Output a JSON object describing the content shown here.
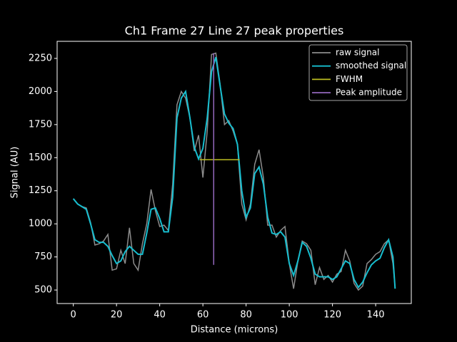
{
  "chart_data": {
    "type": "line",
    "title": "Ch1 Frame 27 Line 27 peak properties",
    "xlabel": "Distance (microns)",
    "ylabel": "Signal (AU)",
    "xlim": [
      -7.5,
      156.5
    ],
    "ylim": [
      398,
      2379
    ],
    "xticks": [
      0,
      20,
      40,
      60,
      80,
      100,
      120,
      140
    ],
    "yticks": [
      500,
      750,
      1000,
      1250,
      1500,
      1750,
      2000,
      2250
    ],
    "legend": "upper right",
    "series": [
      {
        "name": "raw signal",
        "color": "#8c8c8c",
        "x": [
          0,
          2,
          4,
          6,
          8,
          10,
          12,
          14,
          16,
          18,
          20,
          22,
          24,
          26,
          28,
          30,
          32,
          34,
          36,
          38,
          40,
          42,
          44,
          46,
          48,
          50,
          52,
          54,
          56,
          58,
          60,
          62,
          64,
          66,
          68,
          70,
          72,
          74,
          76,
          78,
          80,
          82,
          84,
          86,
          88,
          90,
          92,
          94,
          96,
          98,
          100,
          102,
          104,
          106,
          108,
          110,
          112,
          114,
          116,
          118,
          120,
          122,
          124,
          126,
          128,
          130,
          132,
          134,
          136,
          138,
          140,
          142,
          144,
          146,
          148,
          149
        ],
        "values": [
          1190,
          1150,
          1130,
          1120,
          1010,
          840,
          850,
          870,
          920,
          650,
          660,
          800,
          700,
          970,
          700,
          650,
          850,
          1000,
          1260,
          1100,
          980,
          990,
          950,
          1300,
          1900,
          2000,
          1950,
          1800,
          1550,
          1670,
          1350,
          1700,
          2280,
          2290,
          2050,
          1750,
          1780,
          1700,
          1600,
          1150,
          1030,
          1150,
          1450,
          1560,
          1350,
          990,
          990,
          900,
          950,
          980,
          700,
          510,
          720,
          870,
          850,
          800,
          540,
          670,
          580,
          610,
          560,
          620,
          640,
          800,
          720,
          550,
          500,
          530,
          700,
          730,
          770,
          790,
          850,
          880,
          700,
          520
        ]
      },
      {
        "name": "smoothed signal",
        "color": "#17becf",
        "x": [
          0,
          2,
          4,
          6,
          8,
          10,
          12,
          14,
          16,
          18,
          20,
          22,
          24,
          26,
          28,
          30,
          32,
          34,
          36,
          38,
          40,
          42,
          44,
          46,
          48,
          50,
          52,
          54,
          56,
          58,
          60,
          62,
          64,
          66,
          68,
          70,
          72,
          74,
          76,
          78,
          80,
          82,
          84,
          86,
          88,
          90,
          92,
          94,
          96,
          98,
          100,
          102,
          104,
          106,
          108,
          110,
          112,
          114,
          116,
          118,
          120,
          122,
          124,
          126,
          128,
          130,
          132,
          134,
          136,
          138,
          140,
          142,
          144,
          146,
          148,
          149
        ],
        "values": [
          1190,
          1150,
          1130,
          1110,
          1000,
          880,
          860,
          860,
          830,
          760,
          700,
          720,
          790,
          830,
          800,
          770,
          770,
          930,
          1110,
          1120,
          1040,
          940,
          940,
          1200,
          1800,
          1950,
          2000,
          1800,
          1580,
          1490,
          1570,
          1800,
          2150,
          2260,
          2040,
          1830,
          1760,
          1720,
          1600,
          1250,
          1050,
          1120,
          1380,
          1430,
          1300,
          1050,
          930,
          920,
          940,
          900,
          700,
          610,
          720,
          860,
          830,
          740,
          620,
          600,
          600,
          600,
          580,
          600,
          660,
          720,
          700,
          580,
          520,
          560,
          630,
          690,
          720,
          740,
          820,
          880,
          750,
          510
        ]
      },
      {
        "name": "FWHM",
        "color": "#bcbd22",
        "x": [
          58.5,
          77
        ],
        "values": [
          1485,
          1485
        ]
      },
      {
        "name": "Peak amplitude",
        "color": "#9467bd",
        "x": [
          65,
          65
        ],
        "values": [
          690,
          2290
        ]
      }
    ]
  }
}
